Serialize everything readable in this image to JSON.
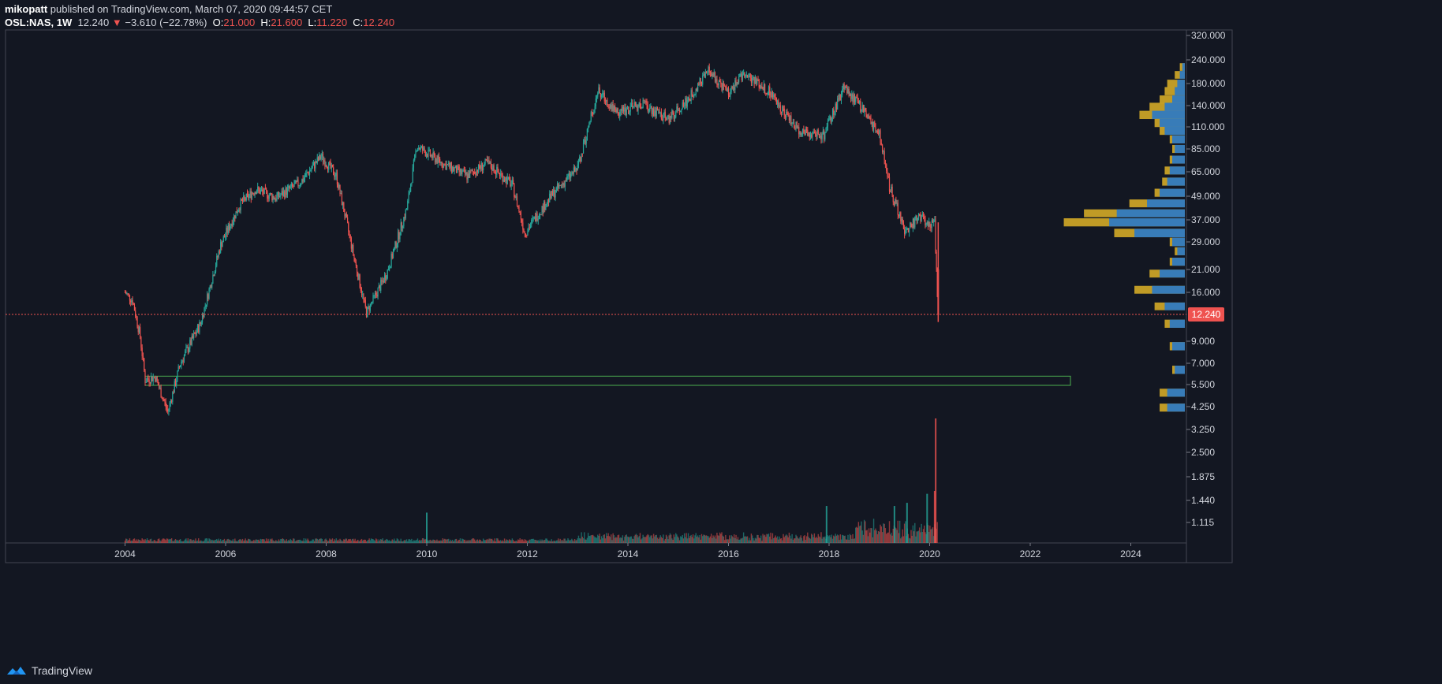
{
  "header": {
    "author": "mikopatt",
    "published_text": "published on TradingView.com, March 07, 2020 09:44:57 CET",
    "symbol": "OSL:NAS, 1W",
    "last": "12.240",
    "change_arrow": "▼",
    "change": "−3.610 (−22.78%)",
    "open_label": "O:",
    "open": "21.000",
    "high_label": "H:",
    "high": "21.600",
    "low_label": "L:",
    "low": "11.220",
    "close_label": "C:",
    "close": "12.240"
  },
  "footer": {
    "brand": "TradingView"
  },
  "colors": {
    "background": "#131722",
    "up": "#26a69a",
    "down": "#ef5350",
    "profile_gold": "#c9a227",
    "profile_blue": "#2979c9",
    "zone": "#4caf50",
    "price_line": "#ef5350"
  },
  "chart_data": {
    "type": "candlestick",
    "symbol": "OSL:NAS",
    "interval": "1W",
    "scale": "log",
    "x_ticks": [
      "2004",
      "2006",
      "2008",
      "2010",
      "2012",
      "2014",
      "2016",
      "2018",
      "2020",
      "2022",
      "2024"
    ],
    "y_ticks": [
      "320.000",
      "240.000",
      "180.000",
      "140.000",
      "110.000",
      "85.000",
      "65.000",
      "49.000",
      "37.000",
      "29.000",
      "21.000",
      "16.000",
      "9.000",
      "7.000",
      "5.500",
      "4.250",
      "3.250",
      "2.500",
      "1.875",
      "1.440",
      "1.115"
    ],
    "last_price_label": "12.240",
    "last_price": 12.24,
    "price_path": [
      [
        2004.0,
        16.0
      ],
      [
        2004.15,
        14.5
      ],
      [
        2004.3,
        9.5
      ],
      [
        2004.4,
        5.8
      ],
      [
        2004.6,
        6.0
      ],
      [
        2004.85,
        4.0
      ],
      [
        2005.1,
        7.0
      ],
      [
        2005.5,
        11.0
      ],
      [
        2005.9,
        28.0
      ],
      [
        2006.3,
        45.0
      ],
      [
        2006.6,
        53.0
      ],
      [
        2007.0,
        48.0
      ],
      [
        2007.5,
        58.0
      ],
      [
        2007.9,
        78.0
      ],
      [
        2008.2,
        62.0
      ],
      [
        2008.5,
        28.0
      ],
      [
        2008.8,
        12.5
      ],
      [
        2009.2,
        20.0
      ],
      [
        2009.6,
        42.0
      ],
      [
        2009.8,
        88.0
      ],
      [
        2010.3,
        72.0
      ],
      [
        2010.8,
        62.0
      ],
      [
        2011.2,
        72.0
      ],
      [
        2011.7,
        56.0
      ],
      [
        2011.95,
        32.0
      ],
      [
        2012.5,
        50.0
      ],
      [
        2013.0,
        68.0
      ],
      [
        2013.4,
        165.0
      ],
      [
        2013.8,
        130.0
      ],
      [
        2014.3,
        142.0
      ],
      [
        2014.8,
        120.0
      ],
      [
        2015.2,
        150.0
      ],
      [
        2015.6,
        210.0
      ],
      [
        2016.0,
        160.0
      ],
      [
        2016.3,
        205.0
      ],
      [
        2016.8,
        165.0
      ],
      [
        2017.4,
        105.0
      ],
      [
        2017.9,
        100.0
      ],
      [
        2018.3,
        175.0
      ],
      [
        2018.7,
        130.0
      ],
      [
        2019.0,
        100.0
      ],
      [
        2019.2,
        55.0
      ],
      [
        2019.5,
        33.0
      ],
      [
        2019.8,
        38.0
      ],
      [
        2020.1,
        35.0
      ],
      [
        2020.17,
        12.24
      ]
    ],
    "support_zone": {
      "from_year": 2004.4,
      "to_year": 2022.8,
      "low": 5.45,
      "high": 6.05
    },
    "volume_profile": [
      {
        "price": 220,
        "gold": 0.02,
        "blue": 0.01
      },
      {
        "price": 200,
        "gold": 0.04,
        "blue": 0.02
      },
      {
        "price": 180,
        "gold": 0.07,
        "blue": 0.03
      },
      {
        "price": 165,
        "gold": 0.08,
        "blue": 0.04
      },
      {
        "price": 150,
        "gold": 0.1,
        "blue": 0.05
      },
      {
        "price": 138,
        "gold": 0.14,
        "blue": 0.08
      },
      {
        "price": 126,
        "gold": 0.18,
        "blue": 0.13
      },
      {
        "price": 115,
        "gold": 0.12,
        "blue": 0.1
      },
      {
        "price": 105,
        "gold": 0.1,
        "blue": 0.08
      },
      {
        "price": 95,
        "gold": 0.06,
        "blue": 0.05
      },
      {
        "price": 85,
        "gold": 0.05,
        "blue": 0.04
      },
      {
        "price": 75,
        "gold": 0.06,
        "blue": 0.05
      },
      {
        "price": 66,
        "gold": 0.08,
        "blue": 0.06
      },
      {
        "price": 58,
        "gold": 0.09,
        "blue": 0.07
      },
      {
        "price": 51,
        "gold": 0.12,
        "blue": 0.1
      },
      {
        "price": 45,
        "gold": 0.22,
        "blue": 0.15
      },
      {
        "price": 40,
        "gold": 0.4,
        "blue": 0.27
      },
      {
        "price": 36,
        "gold": 0.48,
        "blue": 0.3
      },
      {
        "price": 32,
        "gold": 0.28,
        "blue": 0.2
      },
      {
        "price": 29,
        "gold": 0.06,
        "blue": 0.05
      },
      {
        "price": 26,
        "gold": 0.04,
        "blue": 0.03
      },
      {
        "price": 23,
        "gold": 0.06,
        "blue": 0.05
      },
      {
        "price": 20,
        "gold": 0.14,
        "blue": 0.1
      },
      {
        "price": 16.5,
        "gold": 0.2,
        "blue": 0.13
      },
      {
        "price": 13.5,
        "gold": 0.12,
        "blue": 0.08
      },
      {
        "price": 11,
        "gold": 0.08,
        "blue": 0.06
      },
      {
        "price": 8.5,
        "gold": 0.06,
        "blue": 0.05
      },
      {
        "price": 6.5,
        "gold": 0.05,
        "blue": 0.04
      },
      {
        "price": 5,
        "gold": 0.1,
        "blue": 0.07
      },
      {
        "price": 4.2,
        "gold": 0.1,
        "blue": 0.07
      }
    ],
    "volume_spikes": [
      {
        "year": 2020.12,
        "volume": 3.7
      },
      {
        "year": 2020.1,
        "volume": 1.6
      },
      {
        "year": 2019.95,
        "volume": 1.55
      },
      {
        "year": 2019.55,
        "volume": 1.4
      },
      {
        "year": 2019.3,
        "volume": 1.35
      },
      {
        "year": 2017.95,
        "volume": 1.35
      },
      {
        "year": 2010.0,
        "volume": 1.25
      }
    ]
  }
}
